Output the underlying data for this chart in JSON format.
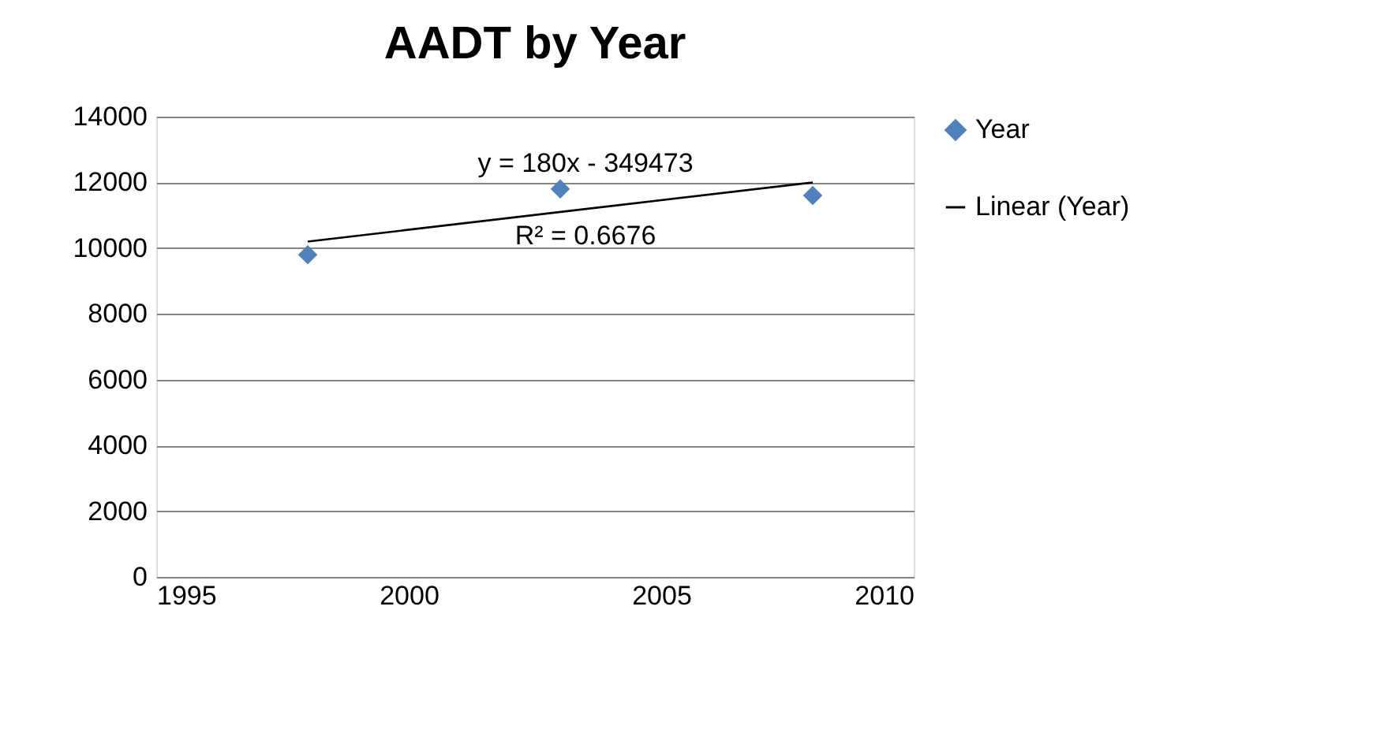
{
  "chart_data": {
    "type": "scatter",
    "title": "AADT by Year",
    "x": [
      1998,
      2003,
      2008
    ],
    "series": [
      {
        "name": "Year",
        "color": "#4f81bd",
        "marker": "diamond",
        "values": [
          9800,
          11800,
          11600
        ]
      },
      {
        "name": "Linear (Year)",
        "type": "line",
        "color": "#000000",
        "line_style": "solid",
        "x": [
          1998,
          2008
        ],
        "values": [
          10200,
          12000
        ]
      }
    ],
    "annotations": [
      "y = 180x - 349473",
      "R² = 0.6676"
    ],
    "xlim": [
      1995,
      2010
    ],
    "xticks": [
      1995,
      2000,
      2005,
      2010
    ],
    "ylim": [
      0,
      14000
    ],
    "yticks": [
      0,
      2000,
      4000,
      6000,
      8000,
      10000,
      12000,
      14000
    ],
    "grid": "y",
    "legend": "right"
  }
}
